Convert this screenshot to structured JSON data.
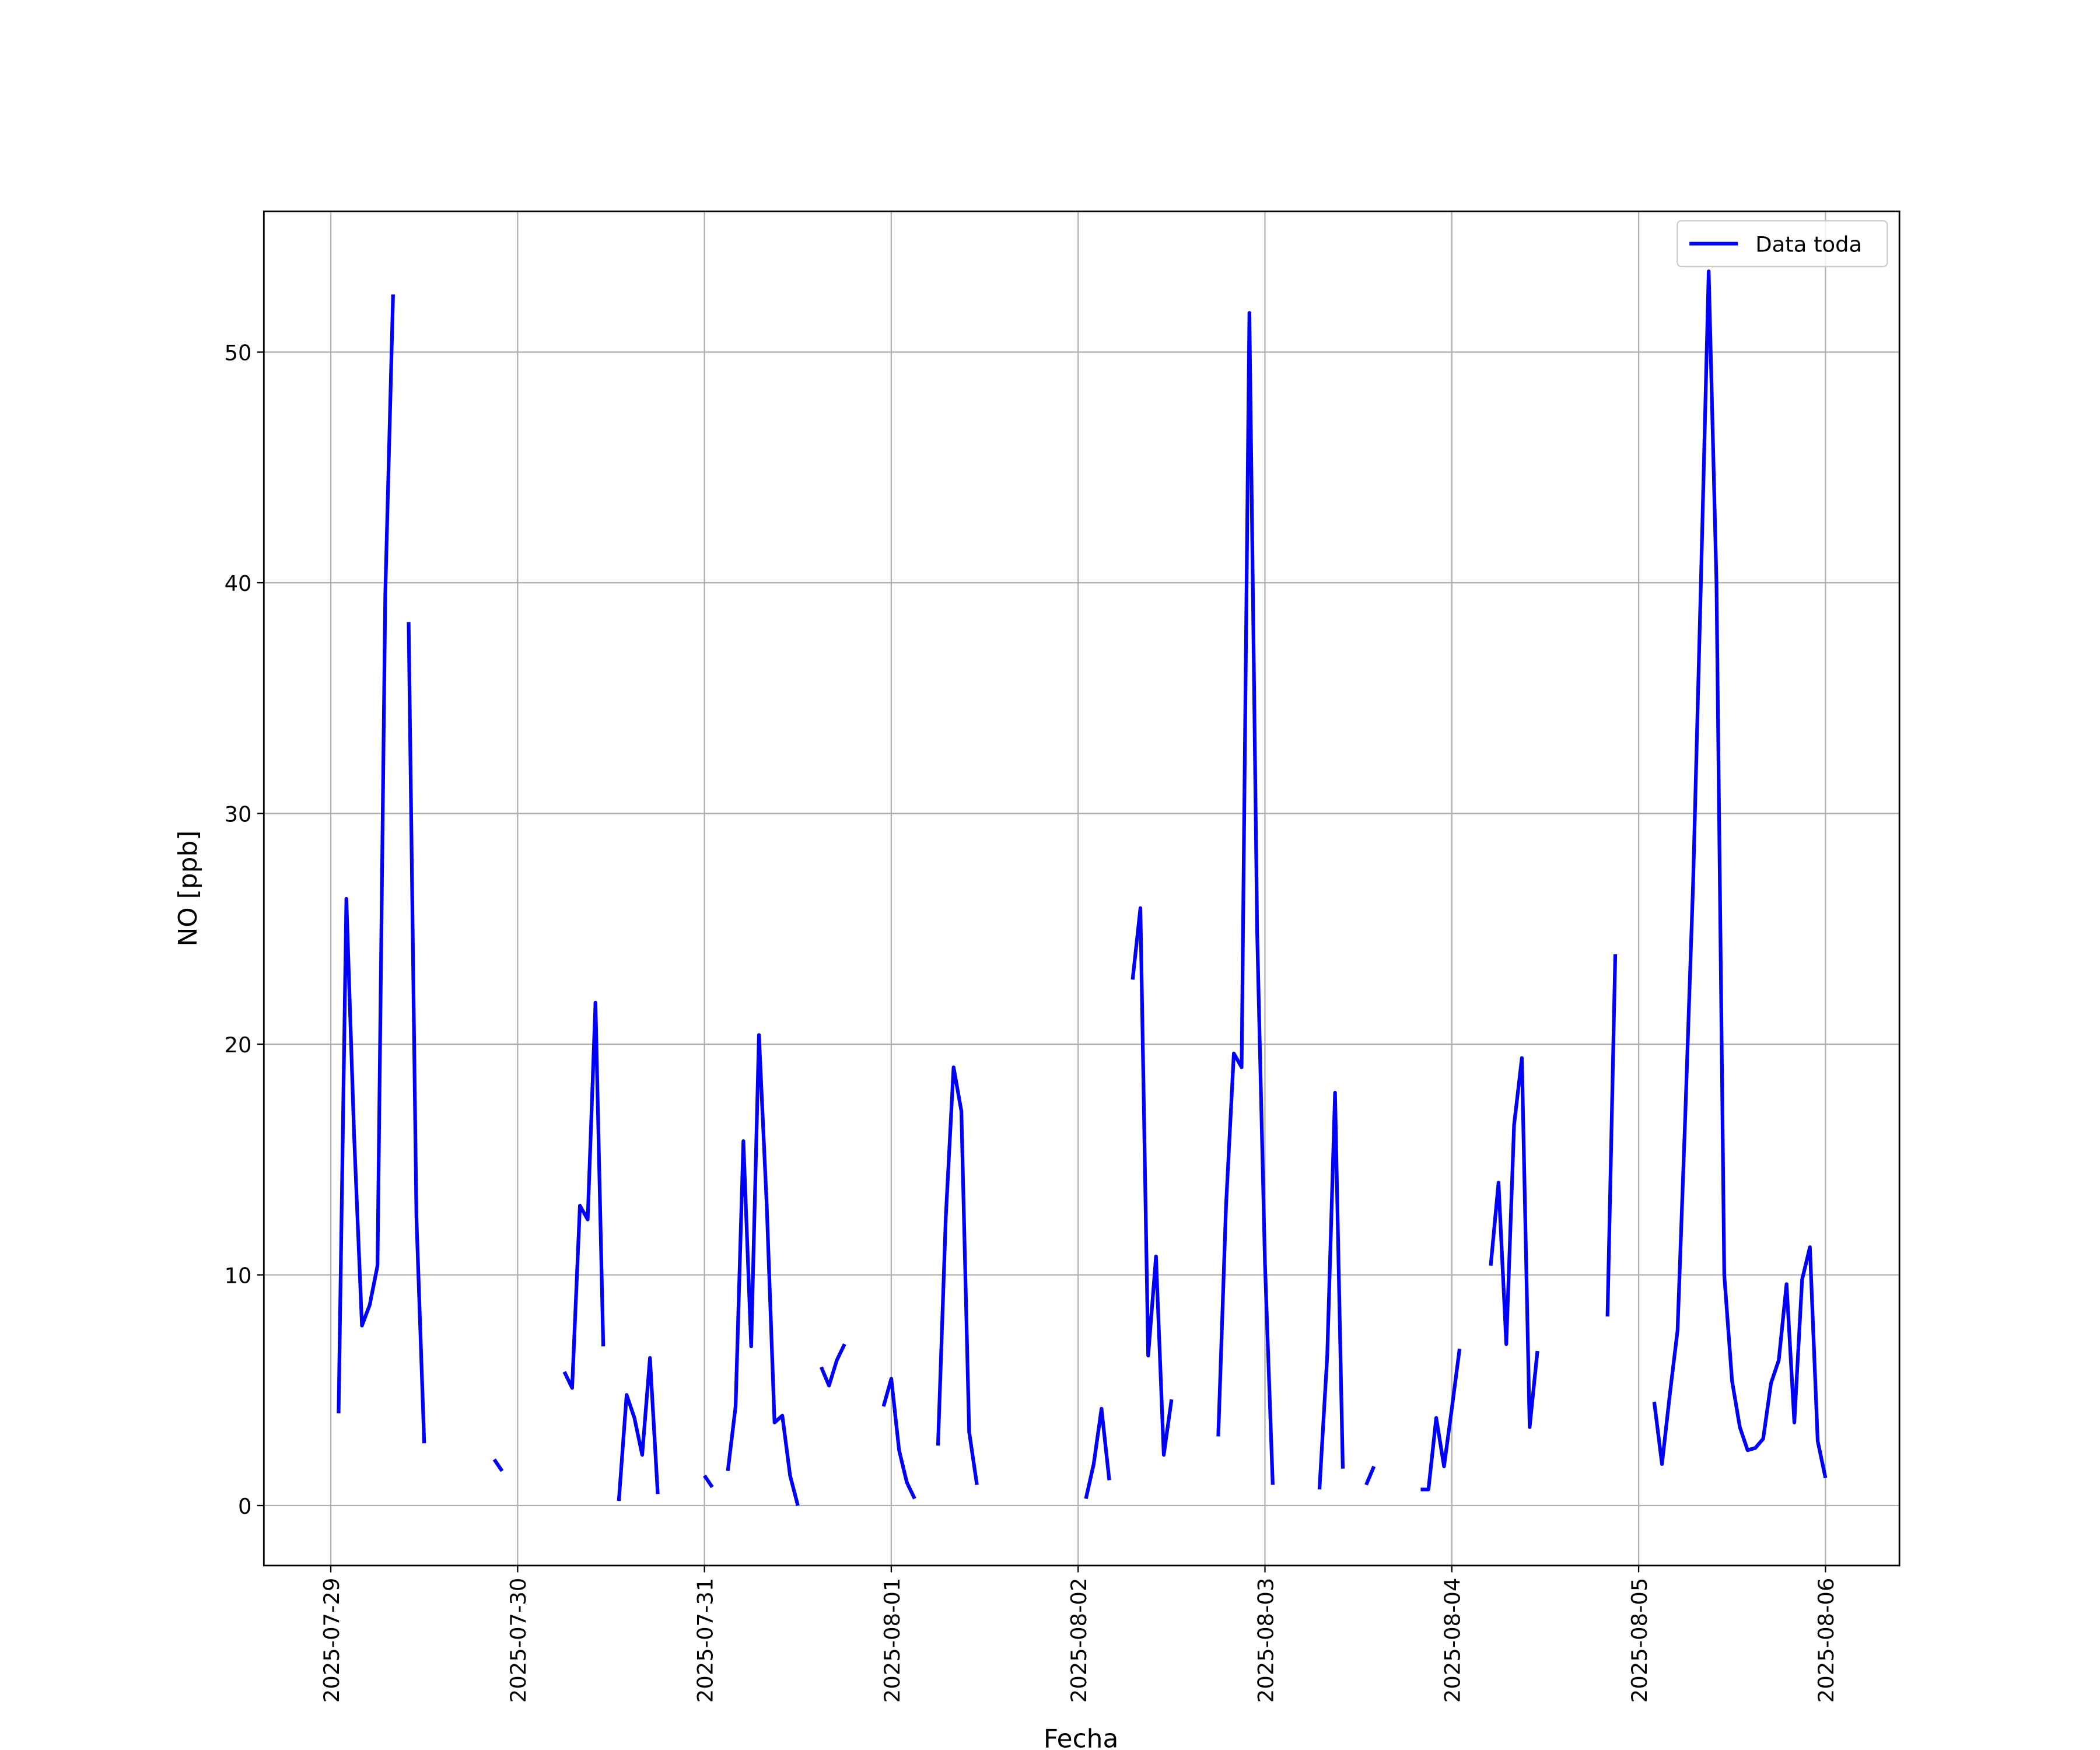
{
  "chart_data": {
    "type": "line",
    "xlabel": "Fecha",
    "ylabel": "NO [ppb]",
    "grid": true,
    "legend": "upper right",
    "x": [
      "2025-07-29 01:00",
      "2025-07-29 02:00",
      "2025-07-29 03:00",
      "2025-07-29 04:00",
      "2025-07-29 05:00",
      "2025-07-29 06:00",
      "2025-07-29 07:00",
      "2025-07-29 08:00",
      "2025-07-29 09:00",
      "2025-07-29 10:00",
      "2025-07-29 11:00",
      "2025-07-29 12:00",
      "2025-07-29 13:00",
      "2025-07-29 21:00",
      "2025-07-29 22:00",
      "2025-07-29 23:00",
      "2025-07-30 06:00",
      "2025-07-30 07:00",
      "2025-07-30 08:00",
      "2025-07-30 09:00",
      "2025-07-30 10:00",
      "2025-07-30 11:00",
      "2025-07-30 12:00",
      "2025-07-30 13:00",
      "2025-07-30 14:00",
      "2025-07-30 15:00",
      "2025-07-30 16:00",
      "2025-07-30 17:00",
      "2025-07-30 18:00",
      "2025-07-30 19:00",
      "2025-07-31 00:00",
      "2025-07-31 01:00",
      "2025-07-31 02:00",
      "2025-07-31 03:00",
      "2025-07-31 04:00",
      "2025-07-31 05:00",
      "2025-07-31 06:00",
      "2025-07-31 07:00",
      "2025-07-31 08:00",
      "2025-07-31 09:00",
      "2025-07-31 10:00",
      "2025-07-31 11:00",
      "2025-07-31 12:00",
      "2025-07-31 13:00",
      "2025-07-31 15:00",
      "2025-07-31 16:00",
      "2025-07-31 17:00",
      "2025-07-31 18:00",
      "2025-07-31 19:00",
      "2025-07-31 23:00",
      "2025-08-01 00:00",
      "2025-08-01 01:00",
      "2025-08-01 02:00",
      "2025-08-01 03:00",
      "2025-08-01 04:00",
      "2025-08-01 06:00",
      "2025-08-01 07:00",
      "2025-08-01 08:00",
      "2025-08-01 09:00",
      "2025-08-01 10:00",
      "2025-08-01 11:00",
      "2025-08-01 12:00",
      "2025-08-02 01:00",
      "2025-08-02 02:00",
      "2025-08-02 03:00",
      "2025-08-02 04:00",
      "2025-08-02 05:00",
      "2025-08-02 07:00",
      "2025-08-02 08:00",
      "2025-08-02 09:00",
      "2025-08-02 10:00",
      "2025-08-02 11:00",
      "2025-08-02 12:00",
      "2025-08-02 13:00",
      "2025-08-02 18:00",
      "2025-08-02 19:00",
      "2025-08-02 20:00",
      "2025-08-02 21:00",
      "2025-08-02 22:00",
      "2025-08-02 23:00",
      "2025-08-03 00:00",
      "2025-08-03 01:00",
      "2025-08-03 02:00",
      "2025-08-03 07:00",
      "2025-08-03 08:00",
      "2025-08-03 09:00",
      "2025-08-03 10:00",
      "2025-08-03 11:00",
      "2025-08-03 13:00",
      "2025-08-03 14:00",
      "2025-08-03 15:00",
      "2025-08-03 20:00",
      "2025-08-03 21:00",
      "2025-08-03 22:00",
      "2025-08-03 23:00",
      "2025-08-04 00:00",
      "2025-08-04 01:00",
      "2025-08-04 02:00",
      "2025-08-04 05:00",
      "2025-08-04 06:00",
      "2025-08-04 07:00",
      "2025-08-04 08:00",
      "2025-08-04 09:00",
      "2025-08-04 10:00",
      "2025-08-04 11:00",
      "2025-08-04 12:00",
      "2025-08-04 20:00",
      "2025-08-04 21:00",
      "2025-08-04 22:00",
      "2025-08-05 02:00",
      "2025-08-05 03:00",
      "2025-08-05 04:00",
      "2025-08-05 05:00",
      "2025-08-05 06:00",
      "2025-08-05 07:00",
      "2025-08-05 08:00",
      "2025-08-05 09:00",
      "2025-08-05 10:00",
      "2025-08-05 11:00",
      "2025-08-05 12:00",
      "2025-08-05 13:00",
      "2025-08-05 14:00",
      "2025-08-05 15:00",
      "2025-08-05 16:00",
      "2025-08-05 17:00",
      "2025-08-05 18:00",
      "2025-08-05 19:00",
      "2025-08-05 20:00",
      "2025-08-05 21:00",
      "2025-08-05 22:00",
      "2025-08-05 23:00",
      "2025-08-06 00:00"
    ],
    "series": [
      {
        "name": "Data toda",
        "color": "#0000ff",
        "values": [
          4.0,
          26.3,
          16.0,
          7.8,
          8.7,
          10.4,
          39.5,
          52.5,
          null,
          38.3,
          12.5,
          2.7,
          null,
          2.0,
          1.5,
          null,
          5.8,
          5.1,
          13.0,
          12.4,
          21.8,
          6.9,
          null,
          0.2,
          4.8,
          3.8,
          2.2,
          6.4,
          0.5,
          null,
          1.3,
          0.8,
          null,
          1.5,
          4.3,
          15.8,
          6.9,
          20.4,
          13.0,
          3.6,
          3.9,
          1.3,
          0.0,
          null,
          6.0,
          5.2,
          6.3,
          7.0,
          null,
          4.3,
          5.5,
          2.4,
          1.0,
          0.3,
          null,
          2.6,
          12.5,
          19.0,
          17.1,
          3.2,
          0.9,
          null,
          0.3,
          1.8,
          4.2,
          1.1,
          null,
          22.8,
          25.9,
          6.5,
          10.8,
          2.2,
          4.6,
          null,
          3.0,
          13.0,
          19.6,
          19.0,
          51.7,
          24.8,
          10.5,
          0.9,
          null,
          0.7,
          6.5,
          17.9,
          1.6,
          null,
          0.9,
          1.7,
          null,
          0.7,
          0.7,
          3.8,
          1.7,
          4.2,
          6.8,
          null,
          10.4,
          14.0,
          7.0,
          16.5,
          19.4,
          3.4,
          6.7,
          null,
          8.2,
          23.9,
          null,
          4.5,
          1.8,
          4.8,
          7.6,
          17.0,
          27.0,
          40.0,
          53.5,
          40.0,
          10.0,
          5.4,
          3.4,
          2.4,
          2.5,
          2.9,
          5.3,
          6.3,
          9.6,
          3.6,
          9.8,
          11.2,
          2.8,
          1.2
        ]
      }
    ],
    "xlim": [
      "2025-07-28 15:24",
      "2025-08-06 09:30"
    ],
    "xticks": [
      "2025-07-29",
      "2025-07-30",
      "2025-07-31",
      "2025-08-01",
      "2025-08-02",
      "2025-08-03",
      "2025-08-04",
      "2025-08-05",
      "2025-08-06"
    ],
    "ylim": [
      -2.6,
      56.1
    ],
    "yticks": [
      0,
      10,
      20,
      30,
      40,
      50
    ]
  }
}
